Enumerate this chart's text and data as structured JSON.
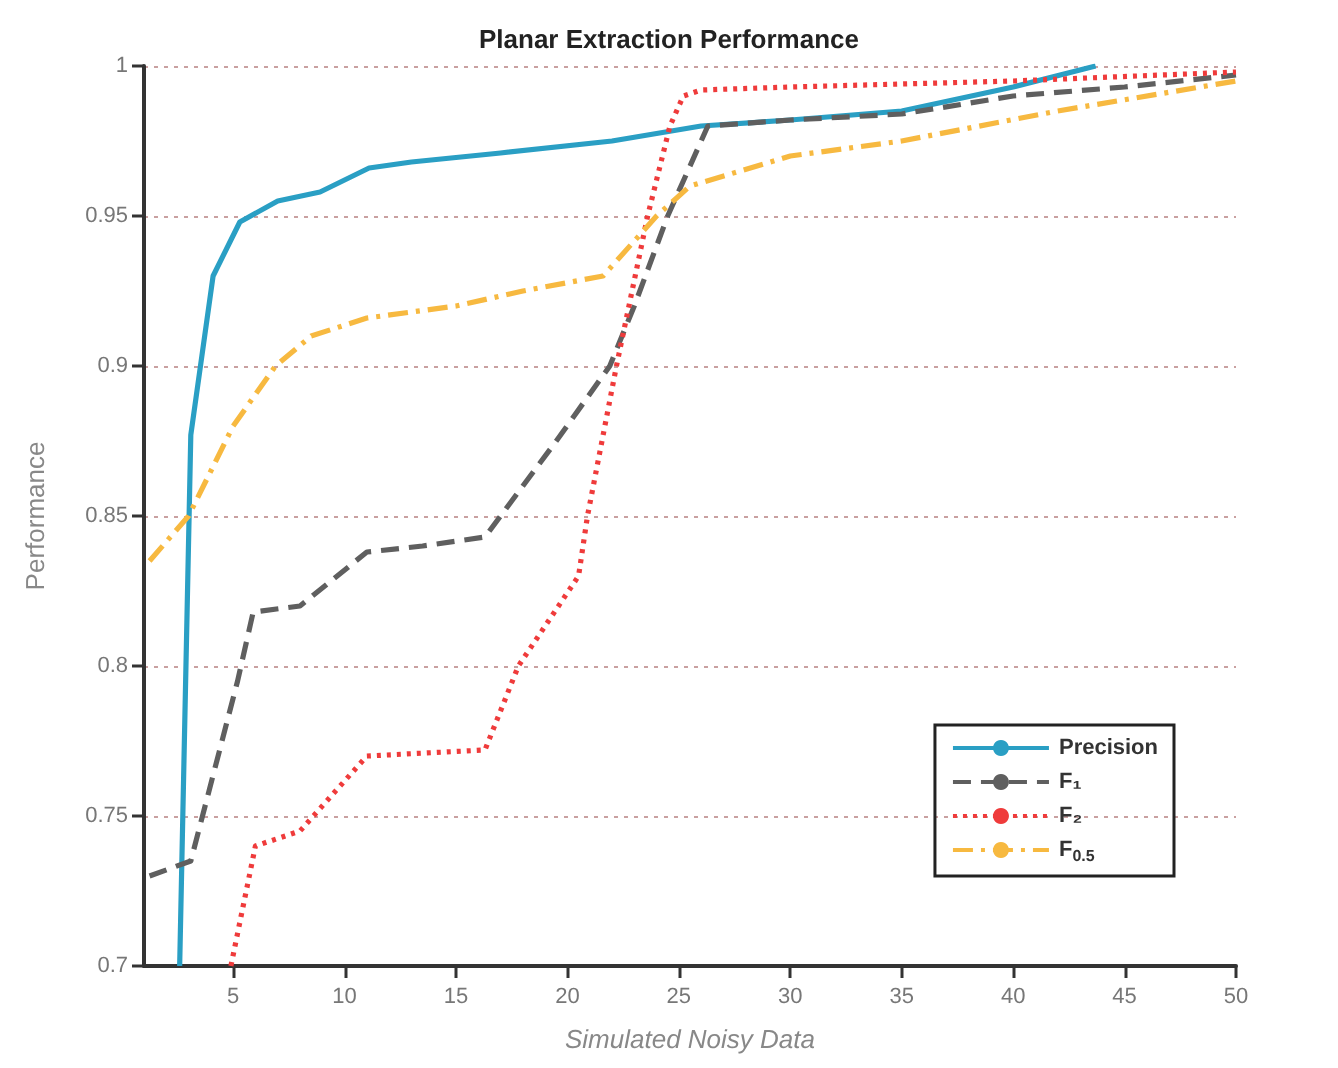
{
  "chart_data": {
    "type": "line",
    "title": "Planar Extraction Performance",
    "xlabel": "Simulated Noisy Data",
    "ylabel": "Performance",
    "xlim": [
      1,
      50
    ],
    "xticks": [
      5,
      10,
      15,
      20,
      25,
      30,
      35,
      40,
      45,
      50
    ],
    "ylim": [
      0.7,
      1
    ],
    "yticks": [
      0.7,
      0.75,
      0.8,
      0.85,
      0.9,
      0.95,
      1
    ],
    "grid": "y",
    "legend": "bottom right",
    "marker": "none",
    "series": [
      {
        "name": "Precision",
        "color": "#2a9fc4",
        "line_style": "solid",
        "x": [
          2.6,
          3.1,
          4.1,
          5.3,
          7,
          8.9,
          11.1,
          13,
          17,
          22,
          26,
          30,
          35,
          40,
          43.7
        ],
        "values": [
          0.7,
          0.877,
          0.93,
          0.948,
          0.955,
          0.958,
          0.966,
          0.968,
          0.971,
          0.975,
          0.98,
          0.982,
          0.985,
          0.993,
          1
        ]
      },
      {
        "name": "F₁",
        "color": "#5f5f5f",
        "line_style": "dashed",
        "x": [
          1.25,
          3.1,
          5.2,
          5.9,
          8,
          11,
          13.5,
          16.3,
          17.5,
          19.5,
          21.9,
          23,
          24.5,
          26.3,
          30,
          35,
          40,
          45,
          50
        ],
        "values": [
          0.73,
          0.735,
          0.795,
          0.818,
          0.82,
          0.838,
          0.84,
          0.843,
          0.855,
          0.875,
          0.9,
          0.92,
          0.95,
          0.98,
          0.982,
          0.984,
          0.99,
          0.993,
          0.997
        ]
      },
      {
        "name": "F₂",
        "color": "#ef3b3b",
        "line_style": "dotted",
        "x": [
          4.9,
          6,
          8,
          11,
          16.3,
          17.8,
          20.5,
          20.9,
          22.2,
          23.6,
          24.6,
          25.2,
          26,
          30,
          40,
          50
        ],
        "values": [
          0.7,
          0.74,
          0.745,
          0.77,
          0.772,
          0.8,
          0.83,
          0.85,
          0.9,
          0.95,
          0.98,
          0.99,
          0.992,
          0.993,
          0.995,
          0.998
        ]
      },
      {
        "name": "F$_{0.5}$",
        "color": "#f7b940",
        "line_style": "dashdot",
        "x": [
          1.25,
          3,
          5,
          6.9,
          8.5,
          11,
          15,
          18,
          21.6,
          24,
          25.5,
          30,
          35,
          42,
          50
        ],
        "values": [
          0.835,
          0.85,
          0.88,
          0.9,
          0.91,
          0.916,
          0.92,
          0.925,
          0.93,
          0.95,
          0.96,
          0.97,
          0.975,
          0.985,
          0.995
        ]
      }
    ]
  }
}
